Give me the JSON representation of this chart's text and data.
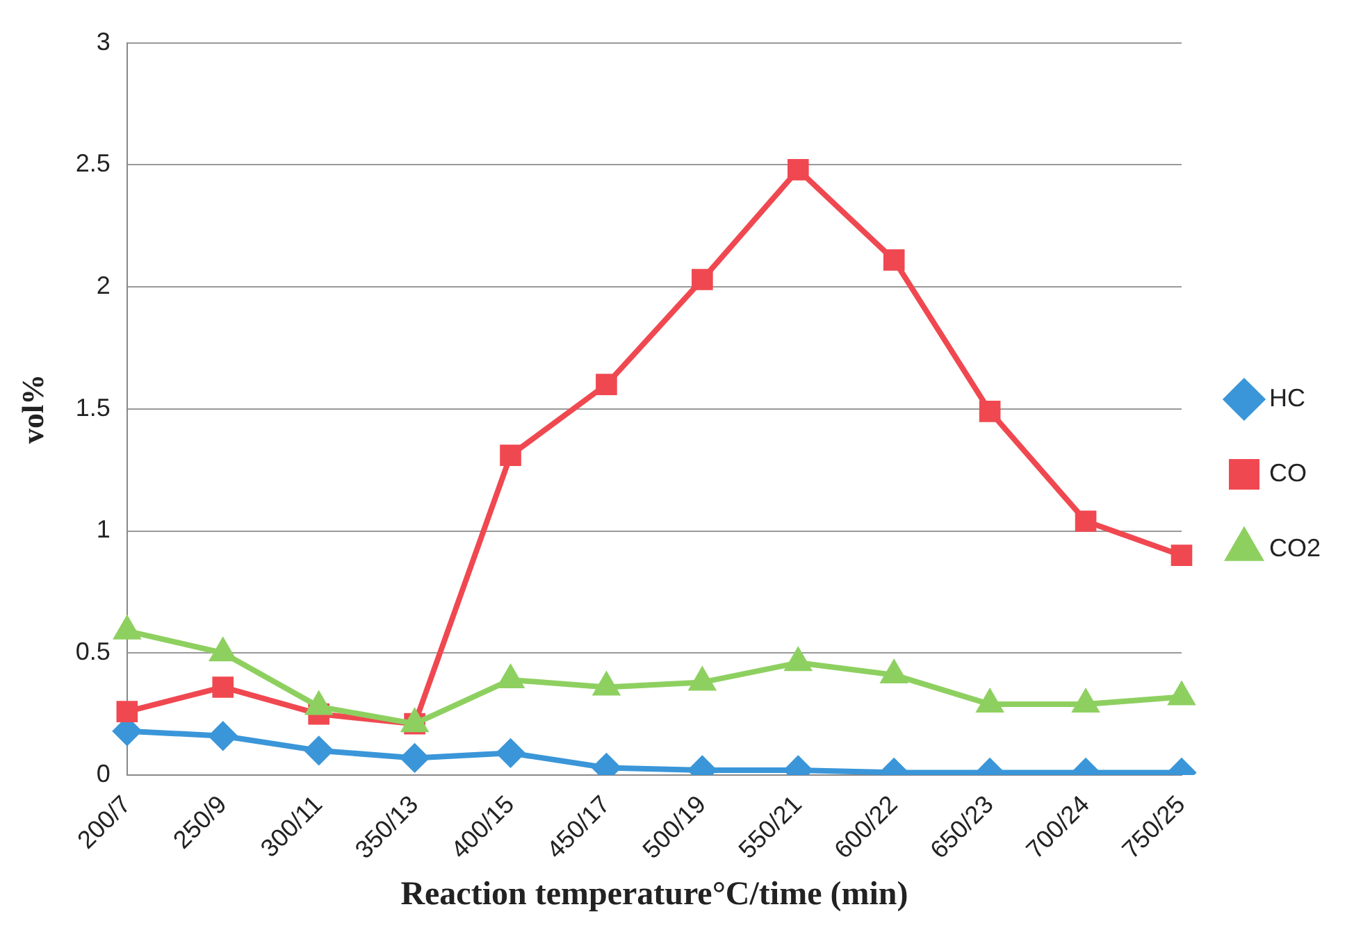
{
  "chart_data": {
    "type": "line",
    "xlabel": "Reaction temperature°C/time (min)",
    "ylabel": "vol%",
    "categories": [
      "200/7",
      "250/9",
      "300/11",
      "350/13",
      "400/15",
      "450/17",
      "500/19",
      "550/21",
      "600/22",
      "650/23",
      "700/24",
      "750/25"
    ],
    "series": [
      {
        "name": "HC",
        "color": "#3a96d8",
        "marker": "diamond",
        "values": [
          0.18,
          0.16,
          0.1,
          0.07,
          0.09,
          0.03,
          0.02,
          0.02,
          0.01,
          0.01,
          0.01,
          0.01
        ]
      },
      {
        "name": "CO",
        "color": "#f04850",
        "marker": "square",
        "values": [
          0.26,
          0.36,
          0.25,
          0.21,
          1.31,
          1.6,
          2.03,
          2.48,
          2.11,
          1.49,
          1.04,
          0.9
        ]
      },
      {
        "name": "CO2",
        "color": "#8ed060",
        "marker": "triangle",
        "values": [
          0.59,
          0.5,
          0.28,
          0.21,
          0.39,
          0.36,
          0.38,
          0.46,
          0.41,
          0.29,
          0.29,
          0.32
        ]
      }
    ],
    "ylim": [
      0,
      3
    ],
    "yticks": [
      0,
      0.5,
      1,
      1.5,
      2,
      2.5,
      3
    ],
    "grid": "y",
    "legend": "right"
  }
}
